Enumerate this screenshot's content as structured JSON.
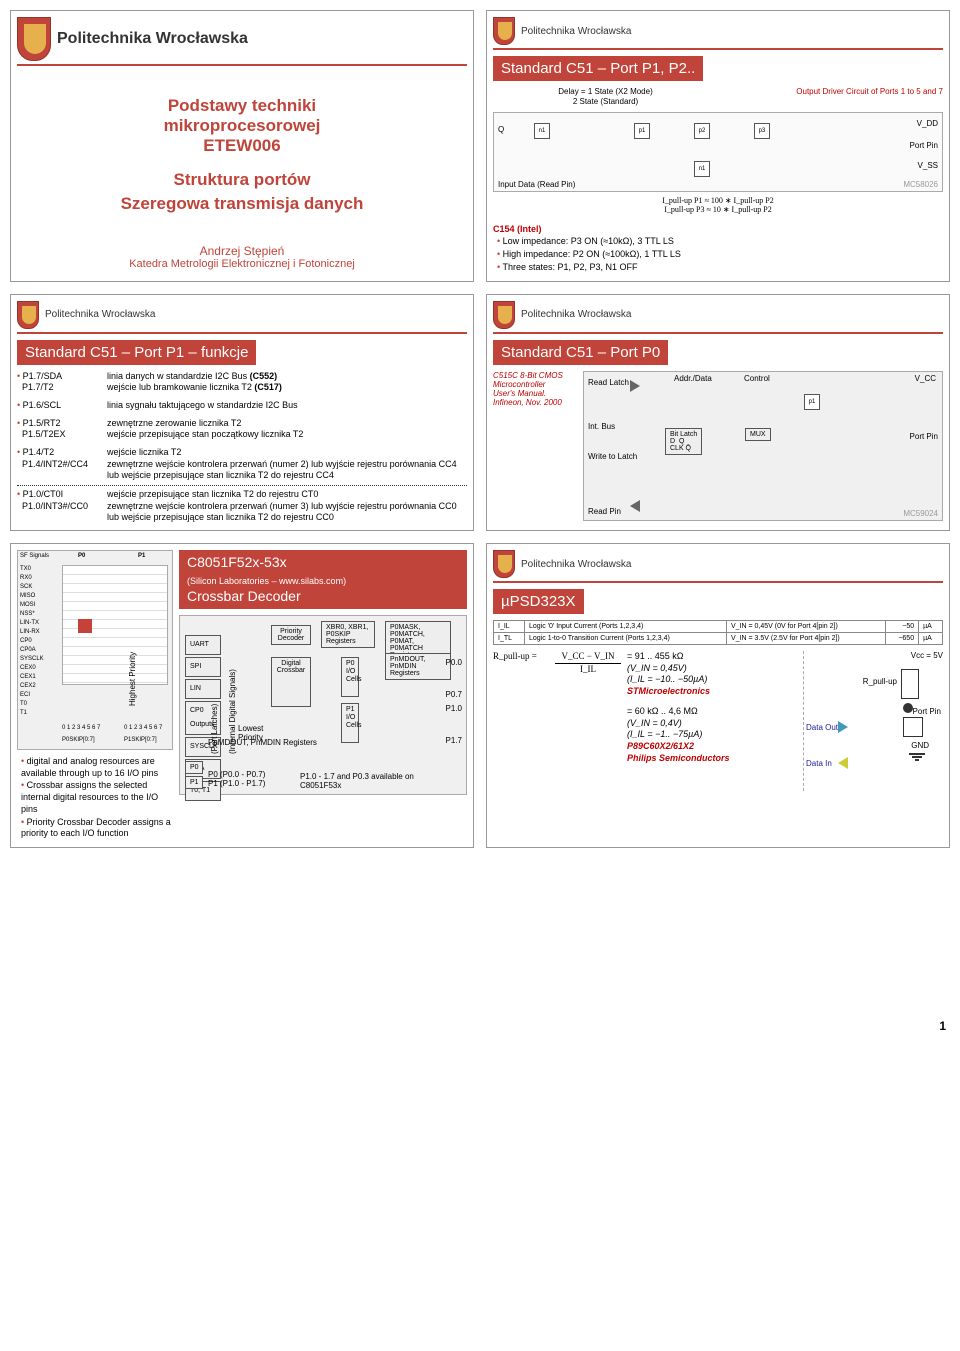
{
  "university": "Politechnika Wrocławska",
  "page_number": "1",
  "slide1": {
    "line1": "Podstawy techniki",
    "line2": "mikroprocesorowej",
    "line3": "ETEW006",
    "line4": "Struktura portów",
    "line5": "Szeregowa transmisja danych",
    "author": "Andrzej Stępień",
    "dept": "Katedra Metrologii Elektronicznej i Fotonicznej"
  },
  "slide2": {
    "title": "Standard C51 – Port P1, P2..",
    "caption1": "Delay = 1 State (X2 Mode)",
    "caption2": "2 State (Standard)",
    "caption_r": "Output Driver Circuit of Ports 1 to 5 and 7",
    "formula1": "I_pull-up P1 ≈ 100 ∗ I_pull-up P2",
    "formula2": "I_pull-up P3 ≈  10 ∗ I_pull-up P2",
    "c154": "C154 (Intel)",
    "c154_b1": "Low impedance:  P3 ON (≈10kΩ), 3 TTL LS",
    "c154_b2": "High impedance: P2 ON (≈100kΩ), 1 TTL LS",
    "c154_b3": "Three states:      P1, P2, P3, N1 OFF"
  },
  "slide3": {
    "title": "Standard C51 – Port P1 – funkcje",
    "rows": [
      [
        "P1.7/SDA",
        "linia danych w standardzie I2C Bus (C552)"
      ],
      [
        "P1.7/T2",
        "wejście lub bramkowanie licznika T2 (C517)"
      ],
      [
        "P1.6/SCL",
        "linia sygnału taktującego w standardzie I2C Bus"
      ],
      [
        "P1.5/RT2",
        "zewnętrzne zerowanie licznika T2"
      ],
      [
        "P1.5/T2EX",
        "wejście przepisujące stan początkowy licznika T2"
      ],
      [
        "P1.4/T2",
        "wejście licznika T2"
      ],
      [
        "P1.4/INT2#/CC4",
        "zewnętrzne wejście kontrolera przerwań (numer 2) lub wyjście rejestru porównania CC4 lub wejście przepisujące stan licznika T2 do rejestru CC4"
      ],
      [
        "P1.0/CT0I",
        "wejście przepisujące stan licznika T2 do rejestru CT0"
      ],
      [
        "P1.0/INT3#/CC0",
        "zewnętrzne wejście kontrolera przerwań (numer 3) lub wyjście rejestru porównania CC0 lub wejście przepisujące stan licznika T2 do rejestru CC0"
      ]
    ]
  },
  "slide4": {
    "title": "Standard C51 – Port P0",
    "ref1": "C515C 8-Bit CMOS",
    "ref2": "Microcontroller",
    "ref3": "User's Manual.",
    "ref4": "Infineon, Nov. 2000",
    "blk_labels": [
      "Read Latch",
      "Int. Bus",
      "Write to Latch",
      "Read Pin",
      "Addr./Data",
      "Control",
      "Bit Latch",
      "MUX",
      "Port Pin",
      "V_CC"
    ]
  },
  "slide5": {
    "title1": "C8051F52x-53x",
    "title2": "(Silicon Laboratories – www.silabs.com)",
    "title3": "Crossbar Decoder",
    "bullets": [
      "digital and analog resources are available through up to 16 I/O pins",
      "Crossbar assigns the selected internal digital resources to the I/O pins",
      "Priority Crossbar Decoder assigns a priority to each I/O function"
    ],
    "signals": [
      "UART",
      "SPI",
      "LIN",
      "CP0 Outputs",
      "SYSCLK",
      "PCA",
      "T0, T1"
    ],
    "blocks": [
      "Digital Crossbar",
      "Priority Decoder",
      "XBR0, XBR1, P0SKIP Registers",
      "P0MASK, P0MATCH, P0MAT, P0MATCH Registers",
      "PnMDOUT, PnMDIN Registers"
    ],
    "side_labels": [
      "P0.0",
      "P0.7",
      "P1.0",
      "P1.7"
    ],
    "note": "P1.0 - 1.7 and P0.3 available on C8051F53x",
    "grid_header_p0": "P0",
    "grid_header_p1": "P1",
    "grid_header_sig": "SF Signals",
    "lowest": "Lowest Priority"
  },
  "slide6": {
    "title": "µPSD323X",
    "tbl": [
      [
        "I_IL",
        "Logic '0' Input Current (Ports 1,2,3,4)",
        "V_IN = 0,45V (0V for Port 4[pin 2])",
        "−50",
        "µA"
      ],
      [
        "I_TL",
        "Logic 1-to-0 Transition Current (Ports 1,2,3,4)",
        "V_IN = 3.5V (2.5V for Port 4[pin 2])",
        "−650",
        "µA"
      ]
    ],
    "formula_lhs": "R_pull-up =",
    "formula_frac_top": "V_CC − V_IN",
    "formula_frac_bot": "I_IL",
    "line1": "= 91 .. 455 kΩ",
    "line2": "(V_IN = 0,45V)",
    "line3": "(I_IL = −10.. −50µA)",
    "vendor1": "STMicroelectronics",
    "line4": "= 60 kΩ .. 4,6 MΩ",
    "line5": "(V_IN = 0,4V)",
    "line6": "(I_IL = −1.. −75µA)",
    "chip": "P89C60X2/61X2",
    "vendor2": "Philips Semiconductors",
    "vcc": "Vcc = 5V",
    "rp": "R_pull-up",
    "pp": "Port Pin",
    "dout": "Data Out",
    "din": "Data In",
    "gnd": "GND"
  }
}
